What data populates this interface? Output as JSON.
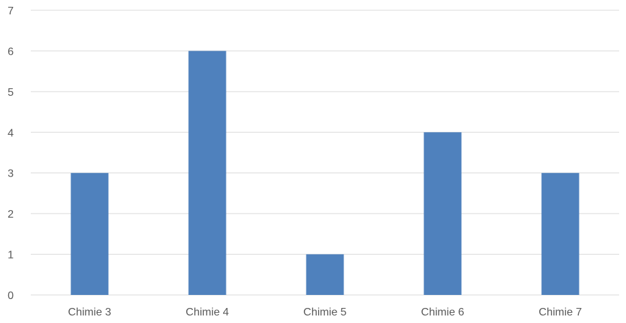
{
  "chart_data": {
    "type": "bar",
    "title": "",
    "xlabel": "",
    "ylabel": "",
    "categories": [
      "Chimie 3",
      "Chimie 4",
      "Chimie 5",
      "Chimie 6",
      "Chimie 7"
    ],
    "values": [
      3,
      6,
      1,
      4,
      3
    ],
    "ylim": [
      0,
      7
    ],
    "yticks": [
      "0",
      "1",
      "2",
      "3",
      "4",
      "5",
      "6",
      "7"
    ],
    "grid": true,
    "legend": "none",
    "bar_color": "#4f81bd",
    "grid_color": "#d9d9d9",
    "text_color": "#595959"
  }
}
